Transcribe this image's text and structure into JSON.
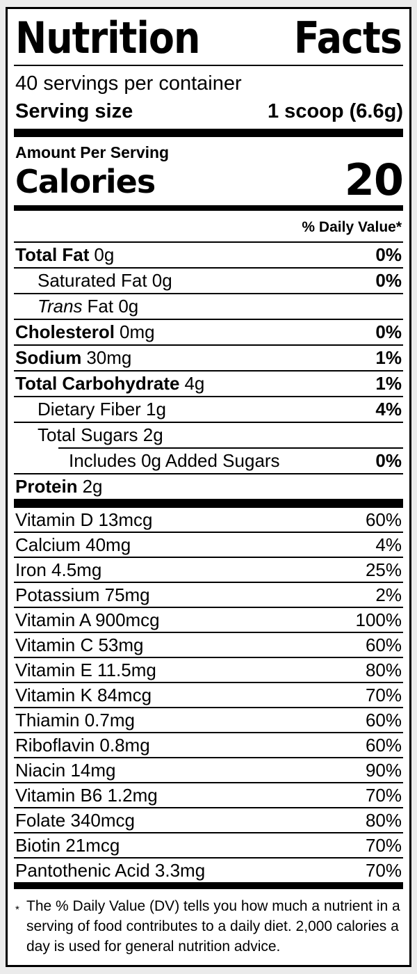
{
  "colors": {
    "ink": "#000000",
    "label_bg": "#ffffff",
    "page_bg": "#ebebeb"
  },
  "header": {
    "title_word_1": "Nutrition",
    "title_word_2": "Facts",
    "servings_per_container": "40 servings per container",
    "serving_size_label": "Serving size",
    "serving_size_value": "1 scoop (6.6g)"
  },
  "calories": {
    "amount_per_serving": "Amount Per Serving",
    "label": "Calories",
    "value": "20"
  },
  "daily_value_header": "% Daily Value*",
  "nutrients": [
    {
      "bold": "Total Fat",
      "rest": "0g",
      "dv": "0%"
    },
    {
      "text": "Saturated Fat 0g",
      "dv": "0%"
    },
    {
      "italic": "Trans",
      "rest": "Fat 0g"
    },
    {
      "bold": "Cholesterol",
      "rest": "0mg",
      "dv": "0%"
    },
    {
      "bold": "Sodium",
      "rest": "30mg",
      "dv": "1%"
    },
    {
      "bold": "Total Carbohydrate",
      "rest": "4g",
      "dv": "1%"
    },
    {
      "text": "Dietary Fiber 1g",
      "dv": "4%"
    },
    {
      "text": "Total Sugars 2g"
    },
    {
      "text": "Includes 0g Added Sugars",
      "dv": "0%"
    },
    {
      "bold": "Protein",
      "rest": "2g"
    }
  ],
  "vitamins": [
    {
      "name": "Vitamin D 13mcg",
      "dv": "60%"
    },
    {
      "name": "Calcium 40mg",
      "dv": "4%"
    },
    {
      "name": "Iron 4.5mg",
      "dv": "25%"
    },
    {
      "name": "Potassium 75mg",
      "dv": "2%"
    },
    {
      "name": "Vitamin A 900mcg",
      "dv": "100%"
    },
    {
      "name": "Vitamin C 53mg",
      "dv": "60%"
    },
    {
      "name": "Vitamin E 11.5mg",
      "dv": "80%"
    },
    {
      "name": "Vitamin K 84mcg",
      "dv": "70%"
    },
    {
      "name": "Thiamin 0.7mg",
      "dv": "60%"
    },
    {
      "name": "Riboflavin 0.8mg",
      "dv": "60%"
    },
    {
      "name": "Niacin 14mg",
      "dv": "90%"
    },
    {
      "name": "Vitamin B6 1.2mg",
      "dv": "70%"
    },
    {
      "name": "Folate 340mcg",
      "dv": "80%"
    },
    {
      "name": "Biotin 21mcg",
      "dv": "70%"
    },
    {
      "name": "Pantothenic Acid 3.3mg",
      "dv": "70%"
    }
  ],
  "footnote": {
    "asterisk": "*",
    "text": "The % Daily Value (DV) tells you how much a nutrient in a serving of food contributes to a daily diet. 2,000 calories a day is used for general nutrition advice."
  }
}
